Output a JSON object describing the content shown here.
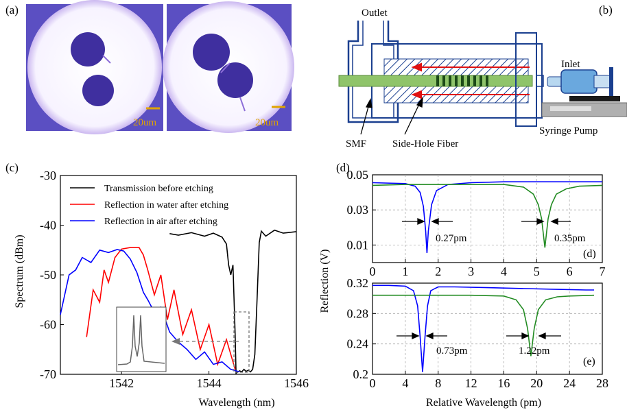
{
  "panels": {
    "a": {
      "label": "(a)",
      "scalebar_left": "20um",
      "scalebar_right": "20um"
    },
    "b": {
      "label": "(b)",
      "outlet": "Outlet",
      "inlet": "Inlet",
      "smf": "SMF",
      "side_hole_fiber": "Side-Hole Fiber",
      "syringe_pump": "Syringe Pump"
    },
    "c": {
      "label": "(c)"
    },
    "d": {
      "label": "(d)"
    },
    "e": {
      "label": "(e)"
    }
  },
  "chart_data": [
    {
      "panel": "c",
      "type": "line",
      "xlabel": "Wavelength (nm)",
      "ylabel": "Spectrum (dBm)",
      "xlim": [
        1540.6,
        1546.0
      ],
      "ylim": [
        -70,
        -30
      ],
      "xticks": [
        1542,
        1544,
        1546
      ],
      "yticks": [
        -30,
        -40,
        -50,
        -60,
        -70
      ],
      "legend_position": "top-right",
      "series": [
        {
          "name": "Transmission before etching",
          "color": "#000000",
          "x": [
            1543.1,
            1543.3,
            1543.6,
            1543.9,
            1544.1,
            1544.3,
            1544.4,
            1544.45,
            1544.5,
            1544.55,
            1544.6,
            1544.62,
            1544.7,
            1544.75,
            1544.8,
            1544.85,
            1544.9,
            1544.95,
            1545.0,
            1545.05,
            1545.1,
            1545.15,
            1545.2,
            1545.3,
            1545.5,
            1545.7,
            1546.0
          ],
          "y": [
            -41.7,
            -42.0,
            -41.5,
            -42.2,
            -41.6,
            -42.4,
            -43.8,
            -48.0,
            -50.0,
            -48.0,
            -62.0,
            -69.8,
            -69.3,
            -69.5,
            -69.0,
            -69.4,
            -69.2,
            -69.5,
            -69.0,
            -66.0,
            -55.0,
            -43.5,
            -41.2,
            -42.2,
            -41.0,
            -41.6,
            -41.3
          ]
        },
        {
          "name": "Reflection in water after etching",
          "color": "#ff0000",
          "x": [
            1541.2,
            1541.35,
            1541.5,
            1541.6,
            1541.7,
            1541.85,
            1542.0,
            1542.2,
            1542.4,
            1542.5,
            1542.6,
            1542.75,
            1542.9,
            1543.05,
            1543.2,
            1543.4,
            1543.6,
            1543.8,
            1544.0,
            1544.2,
            1544.4,
            1544.6
          ],
          "y": [
            -62.5,
            -53.0,
            -55.5,
            -49.0,
            -51.5,
            -46.5,
            -44.8,
            -44.5,
            -44.5,
            -46.0,
            -49.0,
            -54.0,
            -50.0,
            -59.0,
            -53.0,
            -62.0,
            -57.0,
            -65.0,
            -60.0,
            -68.0,
            -63.0,
            -69.0
          ]
        },
        {
          "name": "Reflection in air after etching",
          "color": "#0000ff",
          "x": [
            1540.6,
            1540.8,
            1540.95,
            1541.1,
            1541.3,
            1541.5,
            1541.7,
            1541.9,
            1542.05,
            1542.2,
            1542.35,
            1542.5,
            1542.6,
            1542.75,
            1542.9,
            1543.1,
            1543.3,
            1543.5,
            1543.7,
            1543.9,
            1544.1,
            1544.3,
            1544.5,
            1544.7
          ],
          "y": [
            -58.0,
            -50.0,
            -49.0,
            -46.5,
            -47.5,
            -45.0,
            -45.5,
            -44.9,
            -45.2,
            -46.8,
            -49.5,
            -53.5,
            -55.0,
            -57.5,
            -56.5,
            -61.5,
            -63.5,
            -65.0,
            -67.0,
            -65.5,
            -68.0,
            -67.5,
            -69.0,
            -69.5
          ]
        }
      ]
    },
    {
      "panel": "d",
      "type": "line",
      "xlabel": "",
      "ylabel": "Reflection (V)",
      "xlim": [
        0,
        7
      ],
      "ylim": [
        0,
        0.05
      ],
      "xticks": [
        0,
        1,
        2,
        3,
        4,
        5,
        6,
        7
      ],
      "yticks": [
        0.05,
        0.03,
        0.01
      ],
      "annotations": [
        "0.27pm",
        "0.35pm"
      ],
      "series": [
        {
          "color": "#0000ff",
          "x": [
            0,
            1.0,
            1.3,
            1.45,
            1.55,
            1.62,
            1.66,
            1.7,
            1.8,
            1.95,
            2.3,
            3,
            4,
            5,
            6,
            7
          ],
          "y": [
            0.0455,
            0.045,
            0.0435,
            0.04,
            0.032,
            0.018,
            0.0055,
            0.018,
            0.033,
            0.041,
            0.0445,
            0.0455,
            0.046,
            0.046,
            0.046,
            0.046
          ]
        },
        {
          "color": "#228b22",
          "x": [
            0,
            1,
            2,
            3,
            4,
            4.6,
            4.9,
            5.05,
            5.15,
            5.25,
            5.35,
            5.45,
            5.6,
            5.9,
            6.3,
            7
          ],
          "y": [
            0.044,
            0.0445,
            0.0445,
            0.0445,
            0.0445,
            0.043,
            0.039,
            0.033,
            0.025,
            0.0085,
            0.025,
            0.033,
            0.039,
            0.042,
            0.0435,
            0.044
          ]
        }
      ]
    },
    {
      "panel": "e",
      "type": "line",
      "xlabel": "Relative Wavelength (pm)",
      "ylabel": "",
      "xlim": [
        0,
        28
      ],
      "ylim": [
        0.2,
        0.32
      ],
      "xticks": [
        0,
        4,
        8,
        12,
        16,
        20,
        24,
        28
      ],
      "yticks": [
        0.32,
        0.28,
        0.24,
        0.2
      ],
      "annotations": [
        "0.73pm",
        "1.22pm"
      ],
      "series": [
        {
          "color": "#0000ff",
          "x": [
            0,
            2,
            4,
            5,
            5.5,
            5.8,
            6.1,
            6.4,
            6.7,
            7.1,
            8,
            10,
            14,
            18,
            22,
            26,
            27
          ],
          "y": [
            0.317,
            0.317,
            0.316,
            0.31,
            0.29,
            0.25,
            0.203,
            0.25,
            0.29,
            0.31,
            0.315,
            0.315,
            0.314,
            0.313,
            0.312,
            0.311,
            0.311
          ]
        },
        {
          "color": "#228b22",
          "x": [
            0,
            4,
            8,
            12,
            16,
            17.5,
            18.4,
            18.9,
            19.3,
            19.7,
            20.2,
            21.1,
            22.5,
            24,
            27
          ],
          "y": [
            0.304,
            0.304,
            0.304,
            0.304,
            0.303,
            0.298,
            0.285,
            0.26,
            0.224,
            0.26,
            0.285,
            0.298,
            0.302,
            0.303,
            0.304
          ]
        }
      ]
    }
  ]
}
